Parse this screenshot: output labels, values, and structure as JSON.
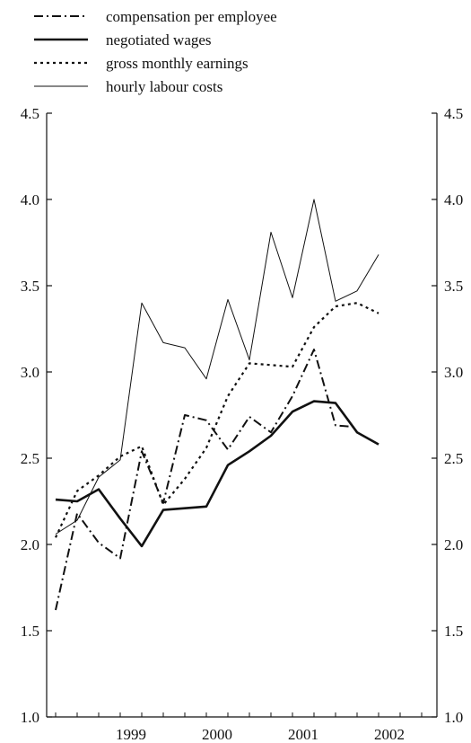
{
  "chart_data": {
    "type": "line",
    "title": "",
    "xlabel": "",
    "ylabel": "",
    "ylim": [
      1.0,
      4.5
    ],
    "yticks": [
      "1.0",
      "1.5",
      "2.0",
      "2.5",
      "3.0",
      "3.5",
      "4.0",
      "4.5"
    ],
    "x": [
      "1998-Q3",
      "1998-Q4",
      "1999-Q1",
      "1999-Q2",
      "1999-Q3",
      "1999-Q4",
      "2000-Q1",
      "2000-Q2",
      "2000-Q3",
      "2000-Q4",
      "2001-Q1",
      "2001-Q2",
      "2001-Q3",
      "2001-Q4",
      "2002-Q1",
      "2002-Q2",
      "2002-Q3",
      "2002-Q4"
    ],
    "xtick_labels": [
      {
        "label": "1999",
        "x": 1999.0
      },
      {
        "label": "2000",
        "x": 2000.0
      },
      {
        "label": "2001",
        "x": 2001.0
      },
      {
        "label": "2002",
        "x": 2002.0
      }
    ],
    "axes": "left and right y axes with identical scale; no grid",
    "legend_position": "top-left, above plot",
    "series": [
      {
        "name": "compensation per employee",
        "style": "dash-dot",
        "values": [
          1.62,
          2.18,
          2.01,
          1.92,
          2.54,
          2.24,
          2.75,
          2.72,
          2.55,
          2.74,
          2.65,
          2.86,
          3.13,
          2.69,
          2.68,
          null,
          null,
          null
        ]
      },
      {
        "name": "negotiated wages",
        "style": "thick-solid",
        "values": [
          2.26,
          2.25,
          2.32,
          2.15,
          1.99,
          2.2,
          2.21,
          2.22,
          2.46,
          2.54,
          2.63,
          2.77,
          2.83,
          2.82,
          2.65,
          2.58,
          null,
          null
        ]
      },
      {
        "name": "gross monthly earnings",
        "style": "dotted",
        "values": [
          2.04,
          2.31,
          2.4,
          2.51,
          2.57,
          2.23,
          2.38,
          2.56,
          2.86,
          3.05,
          3.04,
          3.03,
          3.26,
          3.38,
          3.4,
          3.34,
          null,
          null
        ]
      },
      {
        "name": "hourly labour costs",
        "style": "thin-solid",
        "values": [
          2.06,
          2.14,
          2.39,
          2.49,
          3.4,
          3.17,
          3.14,
          2.96,
          3.42,
          3.07,
          3.81,
          3.43,
          4.0,
          3.41,
          3.47,
          3.68,
          null,
          null
        ]
      }
    ]
  }
}
